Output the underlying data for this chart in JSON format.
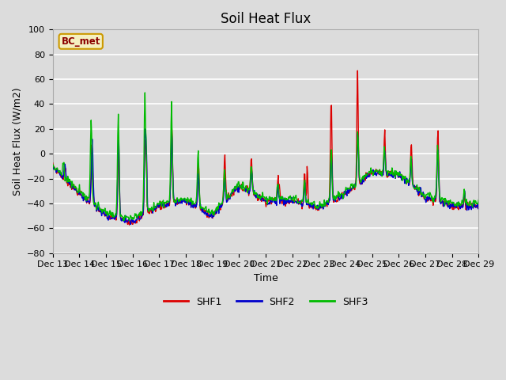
{
  "title": "Soil Heat Flux",
  "xlabel": "Time",
  "ylabel": "Soil Heat Flux (W/m2)",
  "ylim": [
    -80,
    100
  ],
  "yticks": [
    -80,
    -60,
    -40,
    -20,
    0,
    20,
    40,
    60,
    80,
    100
  ],
  "colors": {
    "SHF1": "#dd0000",
    "SHF2": "#0000cc",
    "SHF3": "#00bb00"
  },
  "legend_label": "BC_met",
  "fig_facecolor": "#dcdcdc",
  "plot_bg_color": "#dcdcdc",
  "grid_color": "#ffffff",
  "n_days": 16,
  "start_day": 13,
  "title_fontsize": 12,
  "axis_label_fontsize": 9,
  "tick_fontsize": 8
}
